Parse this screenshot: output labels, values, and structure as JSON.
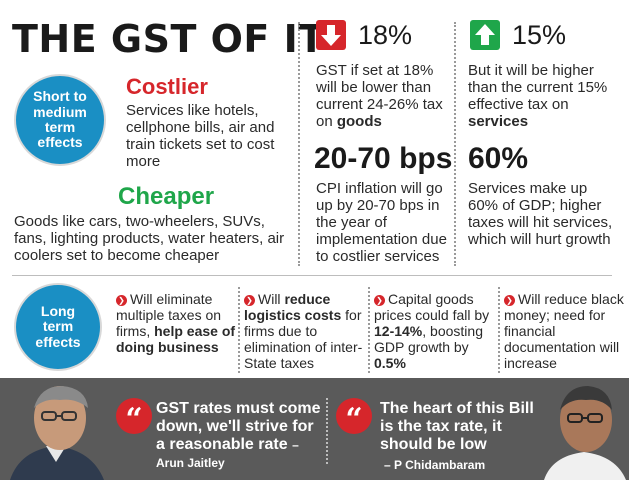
{
  "title": "THE GST OF IT",
  "short_term": {
    "circle_label": "Short to medium term effects",
    "costlier_heading": "Costlier",
    "costlier_text": "Services like hotels, cellphone bills, air and train tickets set to cost more",
    "cheaper_heading": "Cheaper",
    "cheaper_text": "Goods like cars, two-wheelers, SUVs, fans, lighting products, water heaters, air coolers set to become cheaper"
  },
  "stat_18": {
    "value": "18%",
    "icon": "down-arrow-icon",
    "text_before": "GST if set at 18% will be lower than current 24-26% tax on ",
    "text_bold": "goods"
  },
  "stat_15": {
    "value": "15%",
    "icon": "up-arrow-icon",
    "text_before": "But it will be higher than the current 15% effective tax on ",
    "text_bold": "services"
  },
  "stat_bps": {
    "value": "20-70 bps",
    "text": "CPI inflation will go up by 20-70 bps in the year of implementation due to costlier services"
  },
  "stat_60": {
    "value": "60%",
    "text": "Services make up 60% of GDP; higher taxes will hit services, which will hurt growth"
  },
  "long_term": {
    "circle_label": "Long term effects",
    "items": [
      {
        "p1": "Will eliminate multiple taxes on firms, ",
        "b1": "help ease of doing business",
        "p2": "",
        "b2": "",
        "p3": ""
      },
      {
        "p1": "Will ",
        "b1": "reduce logistics costs",
        "p2": " for firms due to elimination of inter-State taxes",
        "b2": "",
        "p3": ""
      },
      {
        "p1": "Capital goods prices could fall by ",
        "b1": "12-14%",
        "p2": ", boosting GDP growth by ",
        "b2": "0.5%",
        "p3": ""
      },
      {
        "p1": "Will reduce black money; need for financial documentation will increase",
        "b1": "",
        "p2": "",
        "b2": "",
        "p3": ""
      }
    ]
  },
  "quotes": [
    {
      "text": "GST rates must come down, we'll strive for a reasonable rate",
      "author": "– Arun Jaitley"
    },
    {
      "text": "The heart of this Bill is the tax rate, it should be low",
      "author": "– P Chidambaram"
    }
  ],
  "colors": {
    "accent_red": "#d6262b",
    "accent_green": "#1fa64a",
    "circle_blue": "#1a8fc4",
    "quote_band": "#5a5a5a"
  }
}
